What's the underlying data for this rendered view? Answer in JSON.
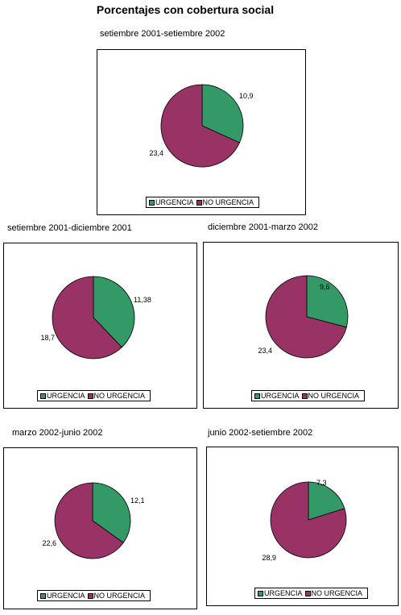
{
  "title": "Porcentajes con cobertura social",
  "colors": {
    "urgencia": "#339966",
    "no_urgencia": "#993366"
  },
  "legend": {
    "urgencia": "URGENCIA",
    "no_urgencia": "NO URGENCIA"
  },
  "chart_data": [
    {
      "type": "pie",
      "title": "setiembre 2001-setiembre 2002",
      "categories": [
        "URGENCIA",
        "NO URGENCIA"
      ],
      "values": [
        10.9,
        23.4
      ],
      "labels": [
        "10,9",
        "23,4"
      ],
      "legend_placement": "bottom"
    },
    {
      "type": "pie",
      "title": "setiembre 2001-diciembre 2001",
      "categories": [
        "URGENCIA",
        "NO URGENCIA"
      ],
      "values": [
        11.38,
        18.7
      ],
      "labels": [
        "11,38",
        "18,7"
      ],
      "legend_placement": "bottom"
    },
    {
      "type": "pie",
      "title": "diciembre 2001-marzo 2002",
      "categories": [
        "URGENCIA",
        "NO URGENCIA"
      ],
      "values": [
        9.6,
        23.4
      ],
      "labels": [
        "9,6",
        "23,4"
      ],
      "legend_placement": "bottom"
    },
    {
      "type": "pie",
      "title": "marzo 2002-junio 2002",
      "categories": [
        "URGENCIA",
        "NO URGENCIA"
      ],
      "values": [
        12.1,
        22.6
      ],
      "labels": [
        "12,1",
        "22,6"
      ],
      "legend_placement": "bottom"
    },
    {
      "type": "pie",
      "title": "junio 2002-setiembre 2002",
      "categories": [
        "URGENCIA",
        "NO URGENCIA"
      ],
      "values": [
        7.3,
        28.9
      ],
      "labels": [
        "7,3",
        "28,9"
      ],
      "legend_placement": "bottom"
    }
  ]
}
